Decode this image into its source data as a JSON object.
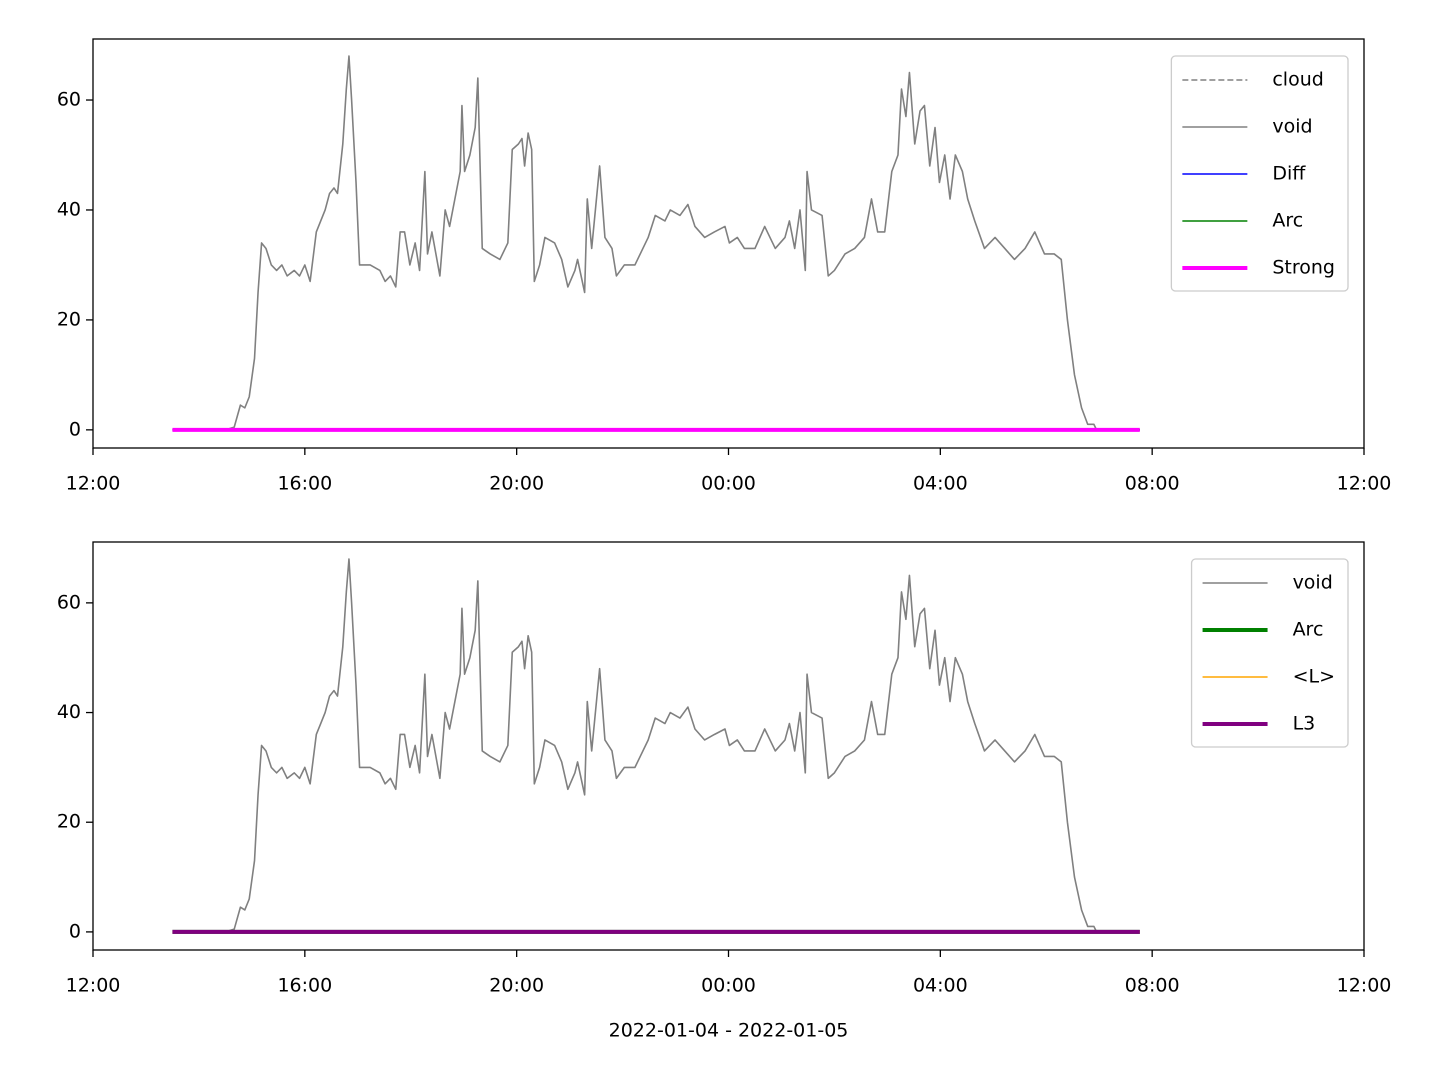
{
  "chart_data": [
    {
      "type": "line",
      "xlim": [
        "2022-01-04 12:00",
        "2022-01-05 12:00"
      ],
      "xticks": [
        {
          "value": "2022-01-04 12:00",
          "label": "12:00"
        },
        {
          "value": "2022-01-04 16:00",
          "label": "16:00"
        },
        {
          "value": "2022-01-04 20:00",
          "label": "20:00"
        },
        {
          "value": "2022-01-05 00:00",
          "label": "00:00"
        },
        {
          "value": "2022-01-05 04:00",
          "label": "04:00"
        },
        {
          "value": "2022-01-05 08:00",
          "label": "08:00"
        },
        {
          "value": "2022-01-05 12:00",
          "label": "12:00"
        }
      ],
      "ylim": [
        -3.3,
        71.1
      ],
      "yticks": [
        0,
        20,
        40,
        60
      ],
      "legend": "upper right",
      "series": [
        {
          "name": "cloud",
          "color": "#808080",
          "linestyle": "dashed",
          "x": [
            "2022-01-04 13:30",
            "2022-01-05 07:46"
          ],
          "values": [
            0,
            0
          ]
        },
        {
          "name": "void",
          "color": "#808080",
          "linestyle": "solid",
          "x": [
            "2022-01-04 14:30",
            "2022-01-04 14:40",
            "2022-01-04 14:47",
            "2022-01-04 14:52",
            "2022-01-04 14:57",
            "2022-01-04 15:03",
            "2022-01-04 15:07",
            "2022-01-04 15:11",
            "2022-01-04 15:16",
            "2022-01-04 15:22",
            "2022-01-04 15:28",
            "2022-01-04 15:34",
            "2022-01-04 15:40",
            "2022-01-04 15:48",
            "2022-01-04 15:54",
            "2022-01-04 16:00",
            "2022-01-04 16:06",
            "2022-01-04 16:13",
            "2022-01-04 16:18",
            "2022-01-04 16:23",
            "2022-01-04 16:28",
            "2022-01-04 16:33",
            "2022-01-04 16:37",
            "2022-01-04 16:43",
            "2022-01-04 16:47",
            "2022-01-04 16:50",
            "2022-01-04 16:53",
            "2022-01-04 16:58",
            "2022-01-04 17:02",
            "2022-01-04 17:14",
            "2022-01-04 17:25",
            "2022-01-04 17:31",
            "2022-01-04 17:37",
            "2022-01-04 17:43",
            "2022-01-04 17:48",
            "2022-01-04 17:53",
            "2022-01-04 17:59",
            "2022-01-04 18:05",
            "2022-01-04 18:10",
            "2022-01-04 18:16",
            "2022-01-04 18:19",
            "2022-01-04 18:24",
            "2022-01-04 18:33",
            "2022-01-04 18:39",
            "2022-01-04 18:44",
            "2022-01-04 18:50",
            "2022-01-04 18:56",
            "2022-01-04 18:58",
            "2022-01-04 19:01",
            "2022-01-04 19:07",
            "2022-01-04 19:13",
            "2022-01-04 19:16",
            "2022-01-04 19:21",
            "2022-01-04 19:30",
            "2022-01-04 19:41",
            "2022-01-04 19:50",
            "2022-01-04 19:55",
            "2022-01-04 20:02",
            "2022-01-04 20:06",
            "2022-01-04 20:09",
            "2022-01-04 20:13",
            "2022-01-04 20:17",
            "2022-01-04 20:20",
            "2022-01-04 20:26",
            "2022-01-04 20:32",
            "2022-01-04 20:43",
            "2022-01-04 20:51",
            "2022-01-04 20:58",
            "2022-01-04 21:06",
            "2022-01-04 21:09",
            "2022-01-04 21:17",
            "2022-01-04 21:20",
            "2022-01-04 21:25",
            "2022-01-04 21:34",
            "2022-01-04 21:40",
            "2022-01-04 21:48",
            "2022-01-04 21:53",
            "2022-01-04 22:02",
            "2022-01-04 22:14",
            "2022-01-04 22:20",
            "2022-01-04 22:29",
            "2022-01-04 22:37",
            "2022-01-04 22:48",
            "2022-01-04 22:54",
            "2022-01-04 23:05",
            "2022-01-04 23:14",
            "2022-01-04 23:22",
            "2022-01-04 23:33",
            "2022-01-04 23:44",
            "2022-01-04 23:56",
            "2022-01-05 00:01",
            "2022-01-05 00:10",
            "2022-01-05 00:18",
            "2022-01-05 00:30",
            "2022-01-05 00:41",
            "2022-01-05 00:53",
            "2022-01-05 01:04",
            "2022-01-05 01:09",
            "2022-01-05 01:15",
            "2022-01-05 01:21",
            "2022-01-05 01:27",
            "2022-01-05 01:29",
            "2022-01-05 01:34",
            "2022-01-05 01:46",
            "2022-01-05 01:53",
            "2022-01-05 02:00",
            "2022-01-05 02:12",
            "2022-01-05 02:23",
            "2022-01-05 02:34",
            "2022-01-05 02:42",
            "2022-01-05 02:49",
            "2022-01-05 02:57",
            "2022-01-05 03:05",
            "2022-01-05 03:12",
            "2022-01-05 03:16",
            "2022-01-05 03:21",
            "2022-01-05 03:25",
            "2022-01-05 03:31",
            "2022-01-05 03:37",
            "2022-01-05 03:42",
            "2022-01-05 03:48",
            "2022-01-05 03:54",
            "2022-01-05 03:59",
            "2022-01-05 04:05",
            "2022-01-05 04:11",
            "2022-01-05 04:17",
            "2022-01-05 04:25",
            "2022-01-05 04:31",
            "2022-01-05 04:39",
            "2022-01-05 04:50",
            "2022-01-05 05:02",
            "2022-01-05 05:13",
            "2022-01-05 05:24",
            "2022-01-05 05:36",
            "2022-01-05 05:47",
            "2022-01-05 05:58",
            "2022-01-05 06:09",
            "2022-01-05 06:17",
            "2022-01-05 06:24",
            "2022-01-05 06:32",
            "2022-01-05 06:40",
            "2022-01-05 06:47",
            "2022-01-05 06:54",
            "2022-01-05 06:57"
          ],
          "values": [
            0,
            0.5,
            4.5,
            4,
            6,
            13,
            25,
            34,
            33,
            30,
            29,
            30,
            28,
            29,
            28,
            30,
            27,
            36,
            38,
            40,
            43,
            44,
            43,
            52,
            62,
            68,
            60,
            45,
            30,
            30,
            29,
            27,
            28,
            26,
            36,
            36,
            30,
            34,
            29,
            47,
            32,
            36,
            28,
            40,
            37,
            42,
            47,
            59,
            47,
            50,
            55,
            64,
            33,
            32,
            31,
            34,
            51,
            52,
            53,
            48,
            54,
            51,
            27,
            30,
            35,
            34,
            31,
            26,
            29,
            31,
            25,
            42,
            33,
            48,
            35,
            33,
            28,
            30,
            30,
            32,
            35,
            39,
            38,
            40,
            39,
            41,
            37,
            35,
            36,
            37,
            34,
            35,
            33,
            33,
            37,
            33,
            35,
            38,
            33,
            40,
            29,
            47,
            40,
            39,
            28,
            29,
            32,
            33,
            35,
            42,
            36,
            36,
            47,
            50,
            62,
            57,
            65,
            52,
            58,
            59,
            48,
            55,
            45,
            50,
            42,
            50,
            47,
            42,
            38,
            33,
            35,
            33,
            31,
            33,
            36,
            32,
            32,
            31,
            20,
            10,
            4,
            1,
            1,
            0
          ]
        },
        {
          "name": "Diff",
          "color": "#0000ff",
          "linestyle": "solid",
          "x": [
            "2022-01-04 13:30",
            "2022-01-05 07:46"
          ],
          "values": [
            0,
            0
          ]
        },
        {
          "name": "Arc",
          "color": "#008000",
          "linestyle": "solid",
          "x": [
            "2022-01-04 13:30",
            "2022-01-05 07:46"
          ],
          "values": [
            0,
            0
          ]
        },
        {
          "name": "Strong",
          "color": "#ff00ff",
          "linestyle": "bold",
          "x": [
            "2022-01-04 13:30",
            "2022-01-05 07:46"
          ],
          "values": [
            0,
            0
          ]
        }
      ]
    },
    {
      "type": "line",
      "xlabel": "2022-01-04 - 2022-01-05",
      "xlim": [
        "2022-01-04 12:00",
        "2022-01-05 12:00"
      ],
      "xticks": [
        {
          "value": "2022-01-04 12:00",
          "label": "12:00"
        },
        {
          "value": "2022-01-04 16:00",
          "label": "16:00"
        },
        {
          "value": "2022-01-04 20:00",
          "label": "20:00"
        },
        {
          "value": "2022-01-05 00:00",
          "label": "00:00"
        },
        {
          "value": "2022-01-05 04:00",
          "label": "04:00"
        },
        {
          "value": "2022-01-05 08:00",
          "label": "08:00"
        },
        {
          "value": "2022-01-05 12:00",
          "label": "12:00"
        }
      ],
      "ylim": [
        -3.3,
        71.1
      ],
      "yticks": [
        0,
        20,
        40,
        60
      ],
      "legend": "upper right",
      "series": [
        {
          "name": "void",
          "color": "#808080",
          "linestyle": "solid",
          "x": [
            "2022-01-04 14:30",
            "2022-01-04 14:40",
            "2022-01-04 14:47",
            "2022-01-04 14:52",
            "2022-01-04 14:57",
            "2022-01-04 15:03",
            "2022-01-04 15:07",
            "2022-01-04 15:11",
            "2022-01-04 15:16",
            "2022-01-04 15:22",
            "2022-01-04 15:28",
            "2022-01-04 15:34",
            "2022-01-04 15:40",
            "2022-01-04 15:48",
            "2022-01-04 15:54",
            "2022-01-04 16:00",
            "2022-01-04 16:06",
            "2022-01-04 16:13",
            "2022-01-04 16:18",
            "2022-01-04 16:23",
            "2022-01-04 16:28",
            "2022-01-04 16:33",
            "2022-01-04 16:37",
            "2022-01-04 16:43",
            "2022-01-04 16:47",
            "2022-01-04 16:50",
            "2022-01-04 16:53",
            "2022-01-04 16:58",
            "2022-01-04 17:02",
            "2022-01-04 17:14",
            "2022-01-04 17:25",
            "2022-01-04 17:31",
            "2022-01-04 17:37",
            "2022-01-04 17:43",
            "2022-01-04 17:48",
            "2022-01-04 17:53",
            "2022-01-04 17:59",
            "2022-01-04 18:05",
            "2022-01-04 18:10",
            "2022-01-04 18:16",
            "2022-01-04 18:19",
            "2022-01-04 18:24",
            "2022-01-04 18:33",
            "2022-01-04 18:39",
            "2022-01-04 18:44",
            "2022-01-04 18:50",
            "2022-01-04 18:56",
            "2022-01-04 18:58",
            "2022-01-04 19:01",
            "2022-01-04 19:07",
            "2022-01-04 19:13",
            "2022-01-04 19:16",
            "2022-01-04 19:21",
            "2022-01-04 19:30",
            "2022-01-04 19:41",
            "2022-01-04 19:50",
            "2022-01-04 19:55",
            "2022-01-04 20:02",
            "2022-01-04 20:06",
            "2022-01-04 20:09",
            "2022-01-04 20:13",
            "2022-01-04 20:17",
            "2022-01-04 20:20",
            "2022-01-04 20:26",
            "2022-01-04 20:32",
            "2022-01-04 20:43",
            "2022-01-04 20:51",
            "2022-01-04 20:58",
            "2022-01-04 21:06",
            "2022-01-04 21:09",
            "2022-01-04 21:17",
            "2022-01-04 21:20",
            "2022-01-04 21:25",
            "2022-01-04 21:34",
            "2022-01-04 21:40",
            "2022-01-04 21:48",
            "2022-01-04 21:53",
            "2022-01-04 22:02",
            "2022-01-04 22:14",
            "2022-01-04 22:20",
            "2022-01-04 22:29",
            "2022-01-04 22:37",
            "2022-01-04 22:48",
            "2022-01-04 22:54",
            "2022-01-04 23:05",
            "2022-01-04 23:14",
            "2022-01-04 23:22",
            "2022-01-04 23:33",
            "2022-01-04 23:44",
            "2022-01-04 23:56",
            "2022-01-05 00:01",
            "2022-01-05 00:10",
            "2022-01-05 00:18",
            "2022-01-05 00:30",
            "2022-01-05 00:41",
            "2022-01-05 00:53",
            "2022-01-05 01:04",
            "2022-01-05 01:09",
            "2022-01-05 01:15",
            "2022-01-05 01:21",
            "2022-01-05 01:27",
            "2022-01-05 01:29",
            "2022-01-05 01:34",
            "2022-01-05 01:46",
            "2022-01-05 01:53",
            "2022-01-05 02:00",
            "2022-01-05 02:12",
            "2022-01-05 02:23",
            "2022-01-05 02:34",
            "2022-01-05 02:42",
            "2022-01-05 02:49",
            "2022-01-05 02:57",
            "2022-01-05 03:05",
            "2022-01-05 03:12",
            "2022-01-05 03:16",
            "2022-01-05 03:21",
            "2022-01-05 03:25",
            "2022-01-05 03:31",
            "2022-01-05 03:37",
            "2022-01-05 03:42",
            "2022-01-05 03:48",
            "2022-01-05 03:54",
            "2022-01-05 03:59",
            "2022-01-05 04:05",
            "2022-01-05 04:11",
            "2022-01-05 04:17",
            "2022-01-05 04:25",
            "2022-01-05 04:31",
            "2022-01-05 04:39",
            "2022-01-05 04:50",
            "2022-01-05 05:02",
            "2022-01-05 05:13",
            "2022-01-05 05:24",
            "2022-01-05 05:36",
            "2022-01-05 05:47",
            "2022-01-05 05:58",
            "2022-01-05 06:09",
            "2022-01-05 06:17",
            "2022-01-05 06:24",
            "2022-01-05 06:32",
            "2022-01-05 06:40",
            "2022-01-05 06:47",
            "2022-01-05 06:54",
            "2022-01-05 06:57"
          ],
          "values": [
            0,
            0.5,
            4.5,
            4,
            6,
            13,
            25,
            34,
            33,
            30,
            29,
            30,
            28,
            29,
            28,
            30,
            27,
            36,
            38,
            40,
            43,
            44,
            43,
            52,
            62,
            68,
            60,
            45,
            30,
            30,
            29,
            27,
            28,
            26,
            36,
            36,
            30,
            34,
            29,
            47,
            32,
            36,
            28,
            40,
            37,
            42,
            47,
            59,
            47,
            50,
            55,
            64,
            33,
            32,
            31,
            34,
            51,
            52,
            53,
            48,
            54,
            51,
            27,
            30,
            35,
            34,
            31,
            26,
            29,
            31,
            25,
            42,
            33,
            48,
            35,
            33,
            28,
            30,
            30,
            32,
            35,
            39,
            38,
            40,
            39,
            41,
            37,
            35,
            36,
            37,
            34,
            35,
            33,
            33,
            37,
            33,
            35,
            38,
            33,
            40,
            29,
            47,
            40,
            39,
            28,
            29,
            32,
            33,
            35,
            42,
            36,
            36,
            47,
            50,
            62,
            57,
            65,
            52,
            58,
            59,
            48,
            55,
            45,
            50,
            42,
            50,
            47,
            42,
            38,
            33,
            35,
            33,
            31,
            33,
            36,
            32,
            32,
            31,
            20,
            10,
            4,
            1,
            1,
            0
          ]
        },
        {
          "name": "Arc",
          "color": "#008000",
          "linestyle": "bold",
          "x": [
            "2022-01-04 13:30",
            "2022-01-05 07:46"
          ],
          "values": [
            0,
            0
          ]
        },
        {
          "name": "<L>",
          "color": "#ffa500",
          "linestyle": "solid",
          "x": [
            "2022-01-04 13:30",
            "2022-01-05 07:46"
          ],
          "values": [
            0,
            0
          ]
        },
        {
          "name": "L3",
          "color": "#800080",
          "linestyle": "bold",
          "x": [
            "2022-01-04 13:30",
            "2022-01-05 07:46"
          ],
          "values": [
            0,
            0
          ]
        }
      ]
    }
  ]
}
